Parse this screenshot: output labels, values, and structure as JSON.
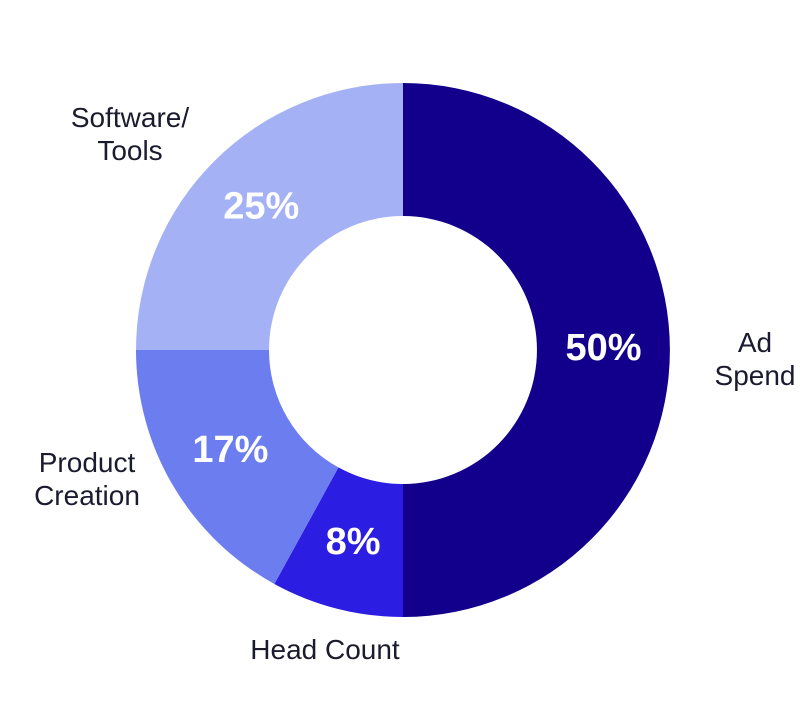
{
  "chart_data": {
    "type": "donut",
    "categories": [
      "Ad\nSpend",
      "Head Count",
      "Product\nCreation",
      "Software/\nTools"
    ],
    "values": [
      50,
      8,
      17,
      25
    ],
    "value_labels": [
      "50%",
      "8%",
      "17%",
      "25%"
    ],
    "colors": [
      "#12008c",
      "#2c1de3",
      "#6c7df0",
      "#a4b1f4"
    ]
  }
}
